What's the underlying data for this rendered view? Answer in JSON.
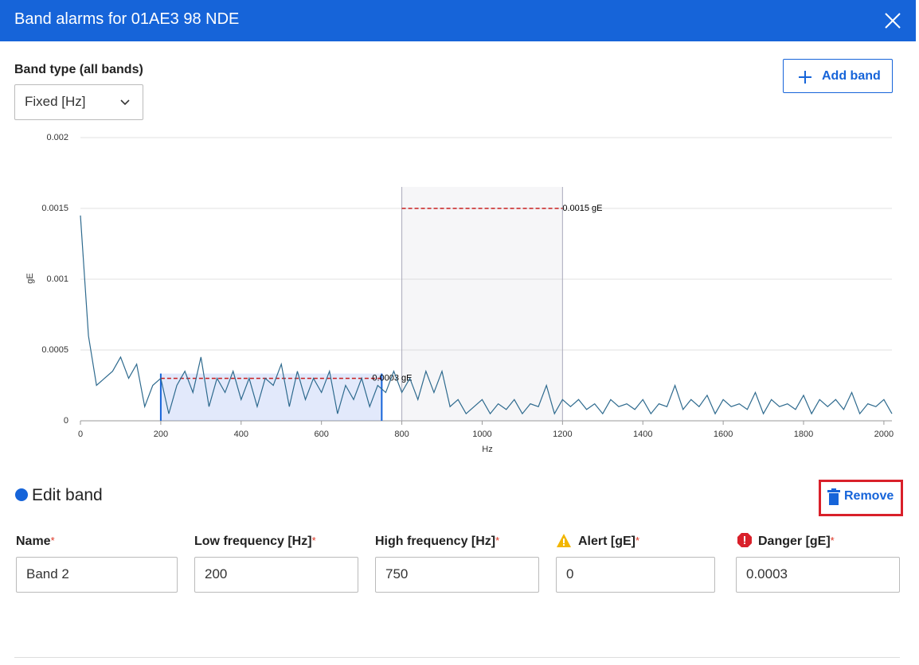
{
  "header": {
    "title": "Band alarms for 01AE3 98 NDE"
  },
  "band_type": {
    "label": "Band type (all bands)",
    "value": "Fixed [Hz]"
  },
  "add_band": "Add band",
  "chart_data": {
    "type": "line",
    "y_label": "gE",
    "x_label": "Hz",
    "xlim": [
      0,
      2020
    ],
    "ylim": [
      0,
      0.002
    ],
    "xticks": [
      0,
      200,
      400,
      600,
      800,
      1000,
      1200,
      1400,
      1600,
      1800,
      2000
    ],
    "yticks": [
      0,
      0.0005,
      0.001,
      0.0015,
      0.002
    ],
    "grid": true,
    "bands": [
      {
        "low": 800,
        "high": 1200,
        "alarm": 0.0015,
        "alarm_label": "0.0015 gE"
      },
      {
        "low": 200,
        "high": 750,
        "alarm": 0.0003,
        "alarm_label": "0.0003 gE"
      }
    ],
    "x": [
      0,
      20,
      40,
      60,
      80,
      100,
      120,
      140,
      160,
      180,
      200,
      220,
      240,
      260,
      280,
      300,
      320,
      340,
      360,
      380,
      400,
      420,
      440,
      460,
      480,
      500,
      520,
      540,
      560,
      580,
      600,
      620,
      640,
      660,
      680,
      700,
      720,
      740,
      760,
      780,
      800,
      820,
      840,
      860,
      880,
      900,
      920,
      940,
      960,
      980,
      1000,
      1020,
      1040,
      1060,
      1080,
      1100,
      1120,
      1140,
      1160,
      1180,
      1200,
      1220,
      1240,
      1260,
      1280,
      1300,
      1320,
      1340,
      1360,
      1380,
      1400,
      1420,
      1440,
      1460,
      1480,
      1500,
      1520,
      1540,
      1560,
      1580,
      1600,
      1620,
      1640,
      1660,
      1680,
      1700,
      1720,
      1740,
      1760,
      1780,
      1800,
      1820,
      1840,
      1860,
      1880,
      1900,
      1920,
      1940,
      1960,
      1980,
      2000,
      2020
    ],
    "series": [
      {
        "color": "#2e6a8e",
        "values": [
          0.00145,
          0.0006,
          0.00025,
          0.0003,
          0.00035,
          0.00045,
          0.0003,
          0.0004,
          0.0001,
          0.00025,
          0.0003,
          5e-05,
          0.00025,
          0.00035,
          0.0002,
          0.00045,
          0.0001,
          0.0003,
          0.0002,
          0.00035,
          0.00015,
          0.0003,
          0.0001,
          0.0003,
          0.00025,
          0.0004,
          0.0001,
          0.00035,
          0.00015,
          0.0003,
          0.0002,
          0.00035,
          5e-05,
          0.00025,
          0.00015,
          0.0003,
          0.0001,
          0.00025,
          0.0002,
          0.00035,
          0.0002,
          0.0003,
          0.00015,
          0.00035,
          0.0002,
          0.00035,
          0.0001,
          0.00015,
          5e-05,
          0.0001,
          0.00015,
          5e-05,
          0.00012,
          8e-05,
          0.00015,
          5e-05,
          0.00012,
          0.0001,
          0.00025,
          5e-05,
          0.00015,
          0.0001,
          0.00015,
          8e-05,
          0.00012,
          5e-05,
          0.00015,
          0.0001,
          0.00012,
          8e-05,
          0.00015,
          5e-05,
          0.00012,
          0.0001,
          0.00025,
          8e-05,
          0.00015,
          0.0001,
          0.00018,
          5e-05,
          0.00015,
          0.0001,
          0.00012,
          8e-05,
          0.0002,
          5e-05,
          0.00015,
          0.0001,
          0.00012,
          8e-05,
          0.00018,
          5e-05,
          0.00015,
          0.0001,
          0.00015,
          8e-05,
          0.0002,
          5e-05,
          0.00012,
          0.0001,
          0.00015,
          5e-05
        ]
      }
    ]
  },
  "edit_band": {
    "title": "Edit band",
    "remove": "Remove",
    "required_mark": "*",
    "fields": [
      {
        "label": "Name",
        "value": "Band 2"
      },
      {
        "label": "Low frequency [Hz]",
        "value": "200"
      },
      {
        "label": "High frequency [Hz]",
        "value": "750"
      },
      {
        "label": "Alert [gE]",
        "value": "0"
      },
      {
        "label": "Danger [gE]",
        "value": "0.0003"
      }
    ]
  }
}
